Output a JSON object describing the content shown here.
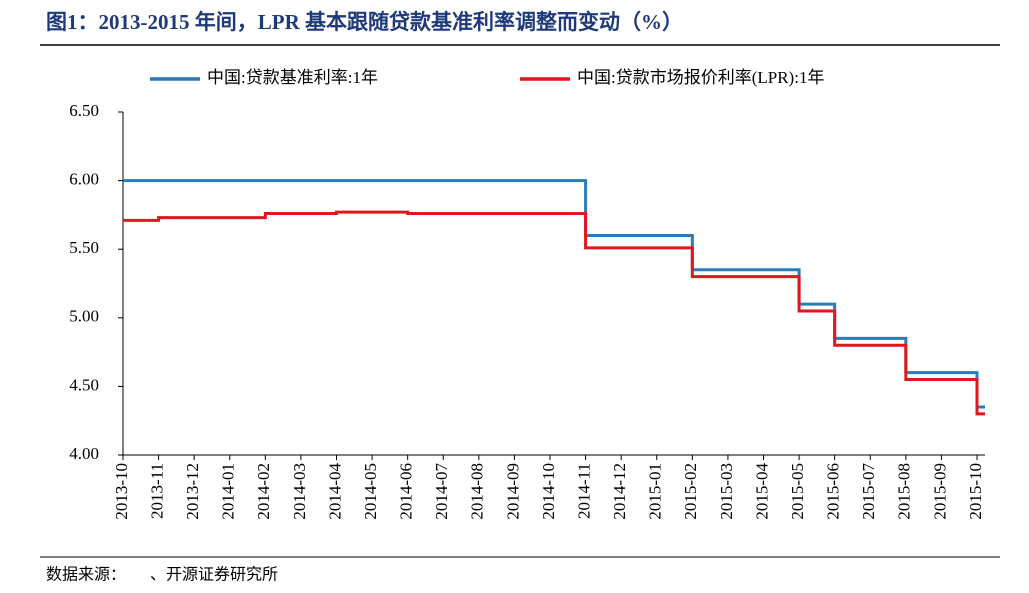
{
  "chart_data": {
    "type": "step-line",
    "title": "图1：2013-2015 年间，LPR 基本跟随贷款基准利率调整而变动（%）",
    "source": "数据来源：　　、开源证券研究所",
    "categories": [
      "2013-10",
      "2013-11",
      "2013-12",
      "2014-01",
      "2014-02",
      "2014-03",
      "2014-04",
      "2014-05",
      "2014-06",
      "2014-07",
      "2014-08",
      "2014-09",
      "2014-10",
      "2014-11",
      "2014-12",
      "2015-01",
      "2015-02",
      "2015-03",
      "2015-04",
      "2015-05",
      "2015-06",
      "2015-07",
      "2015-08",
      "2015-09",
      "2015-10"
    ],
    "series": [
      {
        "name": "中国:贷款基准利率:1年",
        "color": "#2b7bba",
        "values": [
          6.0,
          6.0,
          6.0,
          6.0,
          6.0,
          6.0,
          6.0,
          6.0,
          6.0,
          6.0,
          6.0,
          6.0,
          6.0,
          5.6,
          5.6,
          5.6,
          5.35,
          5.35,
          5.35,
          5.1,
          4.85,
          4.85,
          4.6,
          4.6,
          4.35
        ]
      },
      {
        "name": "中国:贷款市场报价利率(LPR):1年",
        "color": "#e3161d",
        "values": [
          5.71,
          5.73,
          5.73,
          5.73,
          5.76,
          5.76,
          5.77,
          5.77,
          5.76,
          5.76,
          5.76,
          5.76,
          5.76,
          5.51,
          5.51,
          5.51,
          5.3,
          5.3,
          5.3,
          5.05,
          4.8,
          4.8,
          4.55,
          4.55,
          4.3
        ]
      }
    ],
    "ylim": [
      4.0,
      6.5
    ],
    "yticks": [
      {
        "value": 4.0,
        "label": "4.00"
      },
      {
        "value": 4.5,
        "label": "4.50"
      },
      {
        "value": 5.0,
        "label": "5.00"
      },
      {
        "value": 5.5,
        "label": "5.50"
      },
      {
        "value": 6.0,
        "label": "6.00"
      },
      {
        "value": 6.5,
        "label": "6.50"
      }
    ],
    "grid": false,
    "legend": "top"
  }
}
